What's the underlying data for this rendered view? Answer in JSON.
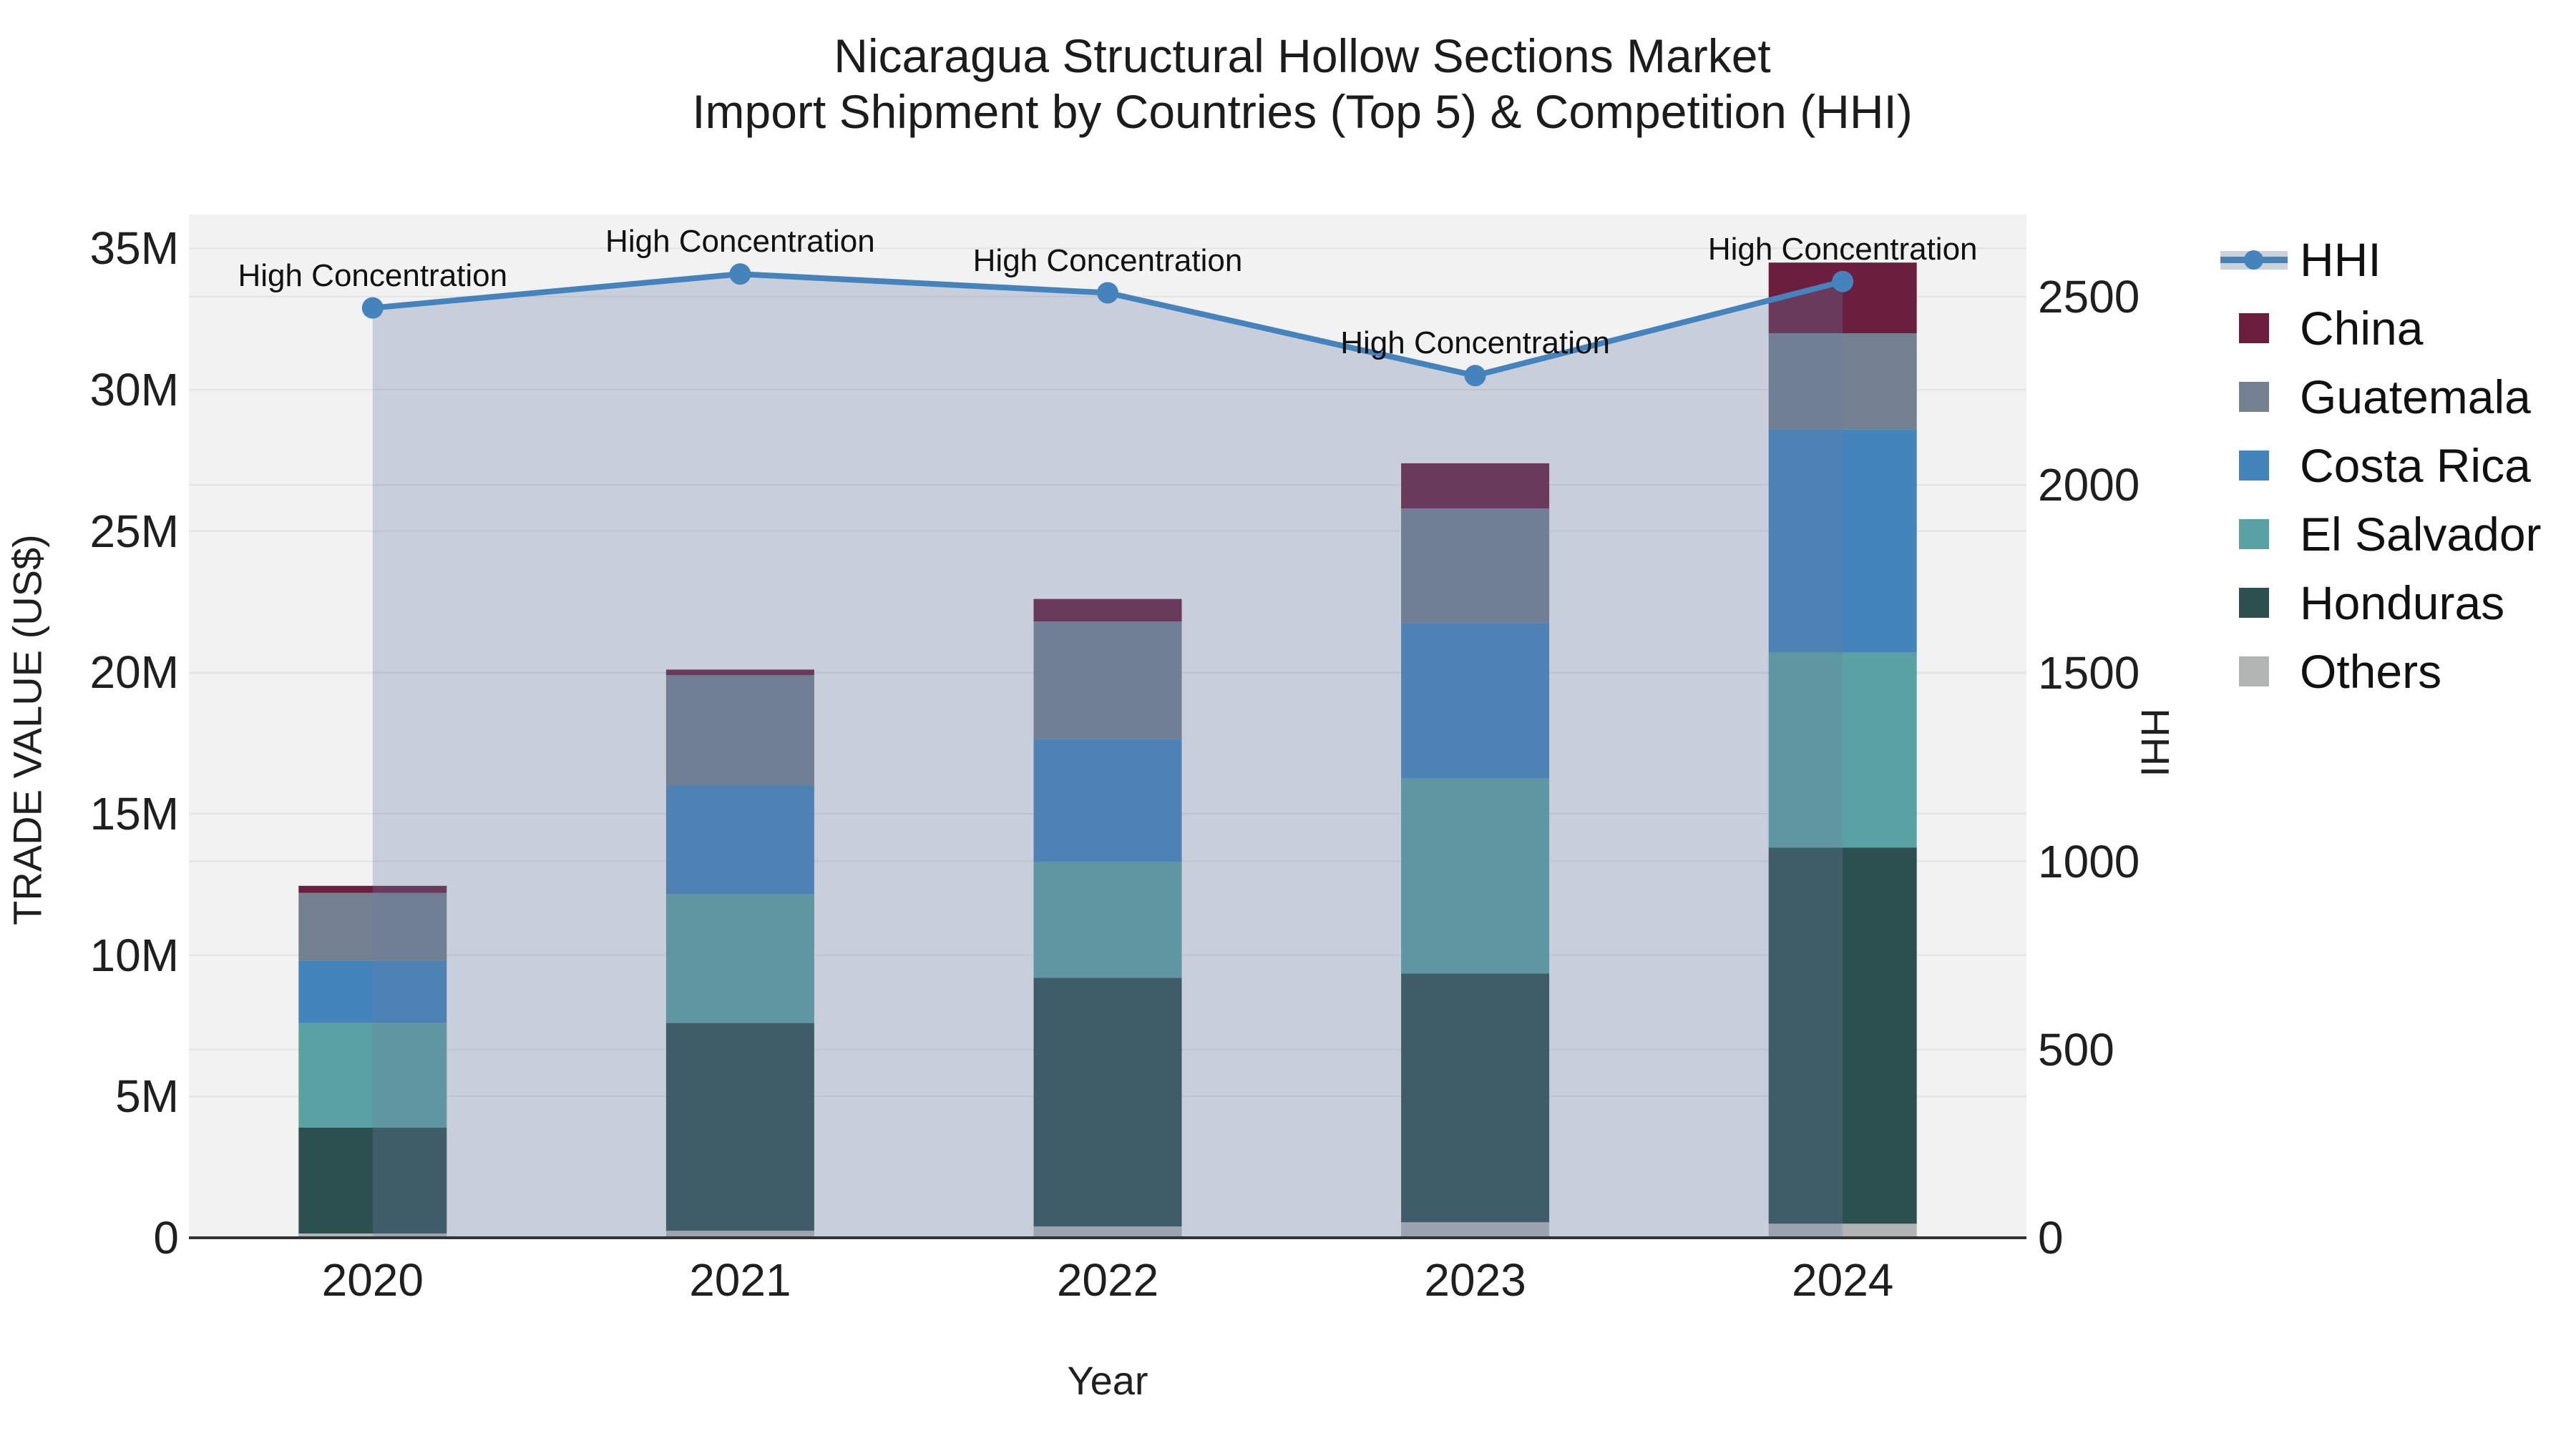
{
  "title": {
    "line1": "Nicaragua Structural Hollow Sections Market",
    "line2": "Import Shipment by Countries (Top 5) & Competition (HHI)"
  },
  "axes": {
    "x_title": "Year",
    "y_left_title": "TRADE VALUE (US$)",
    "y_right_title": "HHI",
    "y_left_ticks": [
      {
        "value": 0,
        "label": "0"
      },
      {
        "value": 5,
        "label": "5M"
      },
      {
        "value": 10,
        "label": "10M"
      },
      {
        "value": 15,
        "label": "15M"
      },
      {
        "value": 20,
        "label": "20M"
      },
      {
        "value": 25,
        "label": "25M"
      },
      {
        "value": 30,
        "label": "30M"
      },
      {
        "value": 35,
        "label": "35M"
      }
    ],
    "y_right_ticks": [
      {
        "value": 0,
        "label": "0"
      },
      {
        "value": 500,
        "label": "500"
      },
      {
        "value": 1000,
        "label": "1000"
      },
      {
        "value": 1500,
        "label": "1500"
      },
      {
        "value": 2000,
        "label": "2000"
      },
      {
        "value": 2500,
        "label": "2500"
      }
    ]
  },
  "legend": [
    {
      "label": "HHI",
      "swatch": "line"
    },
    {
      "label": "China",
      "swatch": "square"
    },
    {
      "label": "Guatemala",
      "swatch": "square"
    },
    {
      "label": "Costa Rica",
      "swatch": "square"
    },
    {
      "label": "El Salvador",
      "swatch": "square"
    },
    {
      "label": "Honduras",
      "swatch": "square"
    },
    {
      "label": "Others",
      "swatch": "square"
    }
  ],
  "colors": {
    "background": "#ffffff",
    "plot_background": "#f2f2f2",
    "gridline": "#e3e3e3",
    "axis_line": "#333333",
    "tick_text": "#1f1f1f",
    "hhi_line": "#4583BC",
    "hhi_area_fill": "rgba(105,125,162,0.30)"
  },
  "chart_data": {
    "type": "bar",
    "subtype": "stacked-bars-with-line-overlay",
    "title": "Nicaragua Structural Hollow Sections Market — Import Shipment by Countries (Top 5) & Competition (HHI)",
    "xlabel": "Year",
    "ylabel_left": "TRADE VALUE (US$)",
    "ylabel_right": "HHI",
    "categories": [
      "2020",
      "2021",
      "2022",
      "2023",
      "2024"
    ],
    "value_unit": "million US$",
    "grid": true,
    "legend_position": "right",
    "series": [
      {
        "name": "Others",
        "values": [
          0.15,
          0.25,
          0.4,
          0.55,
          0.5
        ],
        "color": "#B3B5B5"
      },
      {
        "name": "Honduras",
        "values": [
          3.75,
          7.35,
          8.8,
          8.8,
          13.3
        ],
        "color": "#2C4F4F"
      },
      {
        "name": "El Salvador",
        "values": [
          3.7,
          4.55,
          4.1,
          6.9,
          6.9
        ],
        "color": "#5AA1A3"
      },
      {
        "name": "Costa Rica",
        "values": [
          2.2,
          3.85,
          4.35,
          5.5,
          7.9
        ],
        "color": "#4484BC"
      },
      {
        "name": "Guatemala",
        "values": [
          2.4,
          3.9,
          4.15,
          4.05,
          3.4
        ],
        "color": "#73808F"
      },
      {
        "name": "China",
        "values": [
          0.25,
          0.2,
          0.8,
          1.6,
          2.5
        ],
        "color": "#6B1E3E"
      }
    ],
    "bar_totals": [
      12.45,
      20.1,
      22.6,
      27.4,
      34.5
    ],
    "line": {
      "name": "HHI",
      "axis": "right",
      "values": [
        2470,
        2560,
        2510,
        2290,
        2540
      ],
      "point_annotation": "High Concentration"
    },
    "ylim_left": [
      0,
      36.2
    ],
    "ylim_right": [
      0,
      2718
    ]
  }
}
